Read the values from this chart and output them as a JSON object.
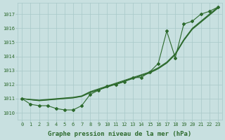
{
  "x": [
    0,
    1,
    2,
    3,
    4,
    5,
    6,
    7,
    8,
    9,
    10,
    11,
    12,
    13,
    14,
    15,
    16,
    17,
    18,
    19,
    20,
    21,
    22,
    23
  ],
  "line_main": [
    1011.0,
    1010.6,
    1010.5,
    1010.5,
    1010.3,
    1010.2,
    1010.2,
    1010.5,
    1011.3,
    1011.6,
    1011.9,
    1012.0,
    1012.2,
    1012.5,
    1012.5,
    1012.9,
    1013.5,
    1015.8,
    1013.9,
    1016.3,
    1016.5,
    1017.0,
    1017.2,
    1017.5
  ],
  "line_smooth1": [
    1011.0,
    1010.95,
    1010.9,
    1010.95,
    1011.0,
    1011.05,
    1011.1,
    1011.2,
    1011.5,
    1011.7,
    1011.9,
    1012.1,
    1012.3,
    1012.5,
    1012.7,
    1012.9,
    1013.2,
    1013.6,
    1014.2,
    1015.2,
    1016.0,
    1016.5,
    1017.0,
    1017.5
  ],
  "line_smooth2": [
    1011.0,
    1010.93,
    1010.87,
    1010.92,
    1010.97,
    1011.02,
    1011.07,
    1011.17,
    1011.45,
    1011.65,
    1011.85,
    1012.05,
    1012.25,
    1012.45,
    1012.65,
    1012.85,
    1013.15,
    1013.55,
    1014.15,
    1015.15,
    1015.95,
    1016.45,
    1016.95,
    1017.45
  ],
  "line_smooth3": [
    1011.0,
    1010.92,
    1010.85,
    1010.9,
    1010.95,
    1011.0,
    1011.05,
    1011.15,
    1011.42,
    1011.62,
    1011.82,
    1012.02,
    1012.22,
    1012.42,
    1012.62,
    1012.82,
    1013.12,
    1013.52,
    1014.12,
    1015.12,
    1015.92,
    1016.42,
    1016.92,
    1017.42
  ],
  "ylim": [
    1009.5,
    1017.8
  ],
  "yticks": [
    1010,
    1011,
    1012,
    1013,
    1014,
    1015,
    1016,
    1017
  ],
  "xticks": [
    0,
    1,
    2,
    3,
    4,
    5,
    6,
    7,
    8,
    9,
    10,
    11,
    12,
    13,
    14,
    15,
    16,
    17,
    18,
    19,
    20,
    21,
    22,
    23
  ],
  "xlabel": "Graphe pression niveau de la mer (hPa)",
  "line_color": "#2d6a2d",
  "bg_color": "#c8e0e0",
  "grid_color": "#a8c8c8",
  "marker": "D",
  "marker_size": 2.0,
  "linewidth": 0.8,
  "tick_fontsize": 5.0,
  "xlabel_fontsize": 6.5
}
